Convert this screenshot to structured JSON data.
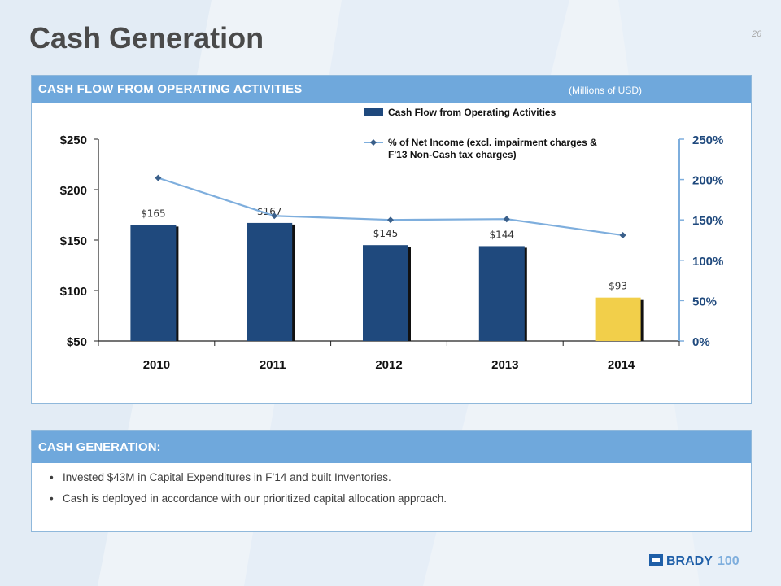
{
  "slide": {
    "title": "Cash Generation",
    "page_number": "26"
  },
  "panel_cash_flow": {
    "header": "CASH FLOW FROM OPERATING ACTIVITIES",
    "units_note": "(Millions of USD)"
  },
  "chart_data": {
    "type": "bar",
    "categories": [
      "2010",
      "2011",
      "2012",
      "2013",
      "2014"
    ],
    "series": [
      {
        "name": "Cash Flow from Operating Activities",
        "type": "bar",
        "axis": "left",
        "values": [
          165,
          167,
          145,
          144,
          93
        ],
        "data_labels": [
          "$165",
          "$167",
          "$145",
          "$144",
          "$93"
        ],
        "colors": [
          "#1f497d",
          "#1f497d",
          "#1f497d",
          "#1f497d",
          "#f2cf4a"
        ]
      },
      {
        "name": "% of Net Income (excl. impairment charges & F'13 Non-Cash tax charges)",
        "legend_lines": [
          "% of Net Income (excl. impairment charges &",
          "F'13 Non-Cash tax charges)"
        ],
        "type": "line",
        "axis": "right",
        "values": [
          202,
          155,
          150,
          151,
          131
        ],
        "color": "#7eaedd"
      }
    ],
    "left_axis": {
      "ylim": [
        50,
        250
      ],
      "ticks": [
        50,
        100,
        150,
        200,
        250
      ],
      "tick_labels": [
        "$50",
        "$100",
        "$150",
        "$200",
        "$250"
      ]
    },
    "right_axis": {
      "ylim": [
        0,
        250
      ],
      "ticks": [
        0,
        50,
        100,
        150,
        200,
        250
      ],
      "tick_labels": [
        "0%",
        "50%",
        "100%",
        "150%",
        "200%",
        "250%"
      ]
    },
    "legend_position": "top-right",
    "grid": false
  },
  "panel_cash_generation": {
    "header": "CASH GENERATION:",
    "bullets": [
      "Invested $43M in Capital Expenditures in F’14 and built Inventories.",
      "Cash is deployed in accordance with our prioritized capital allocation approach."
    ]
  },
  "logo": {
    "brand": "BRADY",
    "suffix": "100",
    "colors": {
      "brand": "#1f5fa8",
      "accent": "#7eaedd"
    }
  }
}
